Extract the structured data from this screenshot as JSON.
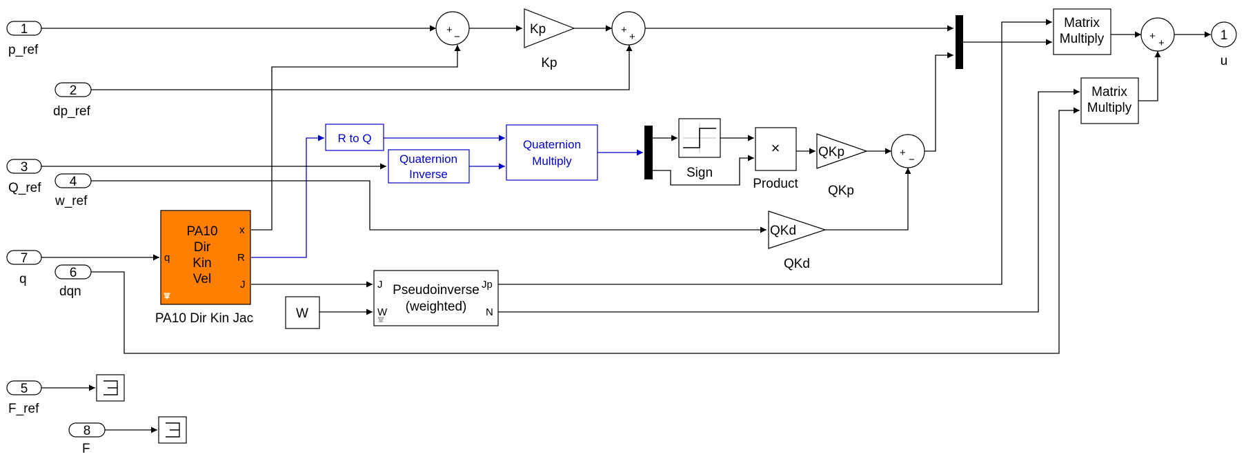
{
  "inports": [
    {
      "number": "1",
      "name": "p_ref"
    },
    {
      "number": "2",
      "name": "dp_ref"
    },
    {
      "number": "3",
      "name": "Q_ref"
    },
    {
      "number": "4",
      "name": "w_ref"
    },
    {
      "number": "7",
      "name": "q"
    },
    {
      "number": "6",
      "name": "dqn"
    },
    {
      "number": "5",
      "name": "F_ref"
    },
    {
      "number": "8",
      "name": "F"
    }
  ],
  "outports": [
    {
      "number": "1",
      "name": "u"
    }
  ],
  "gains": {
    "kp": {
      "text": "Kp",
      "name": "Kp"
    },
    "qkp": {
      "text": "QKp",
      "name": "QKp"
    },
    "qkd": {
      "text": "QKd",
      "name": "QKd"
    }
  },
  "sums": {
    "sum_p": {
      "left": "+",
      "bottom": "−"
    },
    "sum_dp": {
      "left": "+",
      "bottom": "+"
    },
    "sum_q": {
      "left": "+",
      "bottom": "−"
    },
    "sum_out": {
      "left": "+",
      "bottom": "+"
    }
  },
  "blocks": {
    "r_to_q": "R to Q",
    "quat_inverse": [
      "Quaternion",
      "Inverse"
    ],
    "quat_multiply": [
      "Quaternion",
      "Multiply"
    ],
    "sign": "Sign",
    "product": {
      "symbol": "×",
      "name": "Product"
    },
    "matmul1": [
      "Matrix",
      "Multiply"
    ],
    "matmul2": [
      "Matrix",
      "Multiply"
    ],
    "pa10": {
      "lines": [
        "PA10",
        "Dir",
        "Kin",
        "Vel"
      ],
      "ports": [
        "x",
        "R",
        "J",
        "q"
      ],
      "name": "PA10 Dir Kin Jac",
      "color": "#ff7f00"
    },
    "pseudoinverse": {
      "lines": [
        "Pseudoinverse",
        "(weighted)"
      ],
      "ports": [
        "J",
        "W",
        "Jp",
        "N"
      ]
    },
    "w_const": "W"
  },
  "colors": {
    "wire": "#000000",
    "quaternion": "#0000cc",
    "pa10_fill": "#ff7f00"
  }
}
